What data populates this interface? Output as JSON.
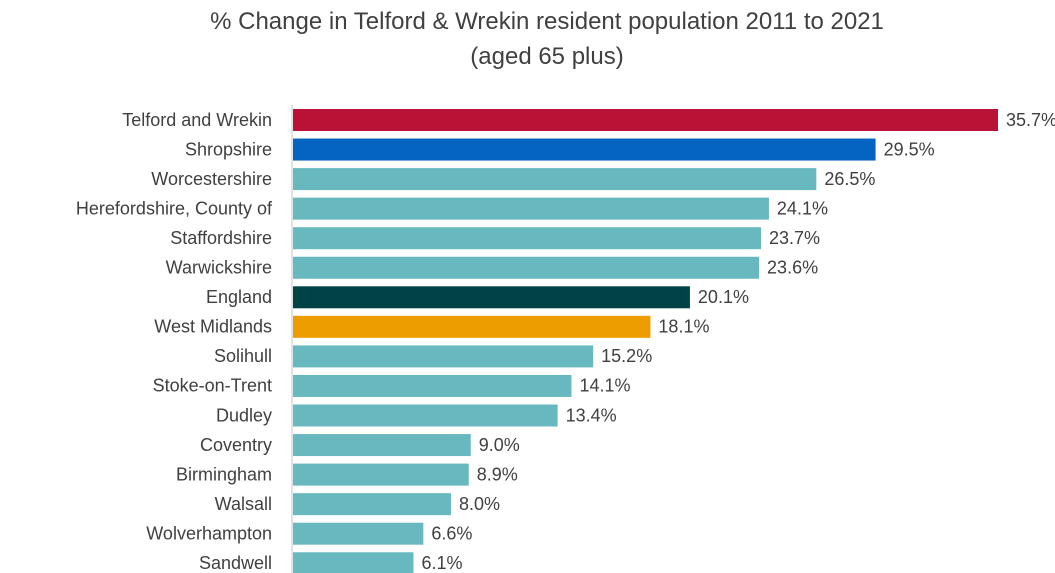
{
  "chart_data": {
    "type": "bar",
    "orientation": "horizontal",
    "title": "% Change in Telford & Wrekin resident population 2011 to 2021 (aged 65 plus)",
    "categories": [
      "Telford and Wrekin",
      "Shropshire",
      "Worcestershire",
      "Herefordshire, County of",
      "Staffordshire",
      "Warwickshire",
      "England",
      "West Midlands",
      "Solihull",
      "Stoke-on-Trent",
      "Dudley",
      "Coventry",
      "Birmingham",
      "Walsall",
      "Wolverhampton",
      "Sandwell"
    ],
    "values": [
      35.7,
      29.5,
      26.5,
      24.1,
      23.7,
      23.6,
      20.1,
      18.1,
      15.2,
      14.1,
      13.4,
      9.0,
      8.9,
      8.0,
      6.6,
      6.1
    ],
    "value_labels": [
      "35.7%",
      "29.5%",
      "26.5%",
      "24.1%",
      "23.7%",
      "23.6%",
      "20.1%",
      "18.1%",
      "15.2%",
      "14.1%",
      "13.4%",
      "9.0%",
      "8.9%",
      "8.0%",
      "6.6%",
      "6.1%"
    ],
    "colors": [
      "#ba1237",
      "#0563c1",
      "#68b9bf",
      "#68b9bf",
      "#68b9bf",
      "#68b9bf",
      "#004346",
      "#ed9d00",
      "#68b9bf",
      "#68b9bf",
      "#68b9bf",
      "#68b9bf",
      "#68b9bf",
      "#68b9bf",
      "#68b9bf",
      "#68b9bf"
    ]
  }
}
